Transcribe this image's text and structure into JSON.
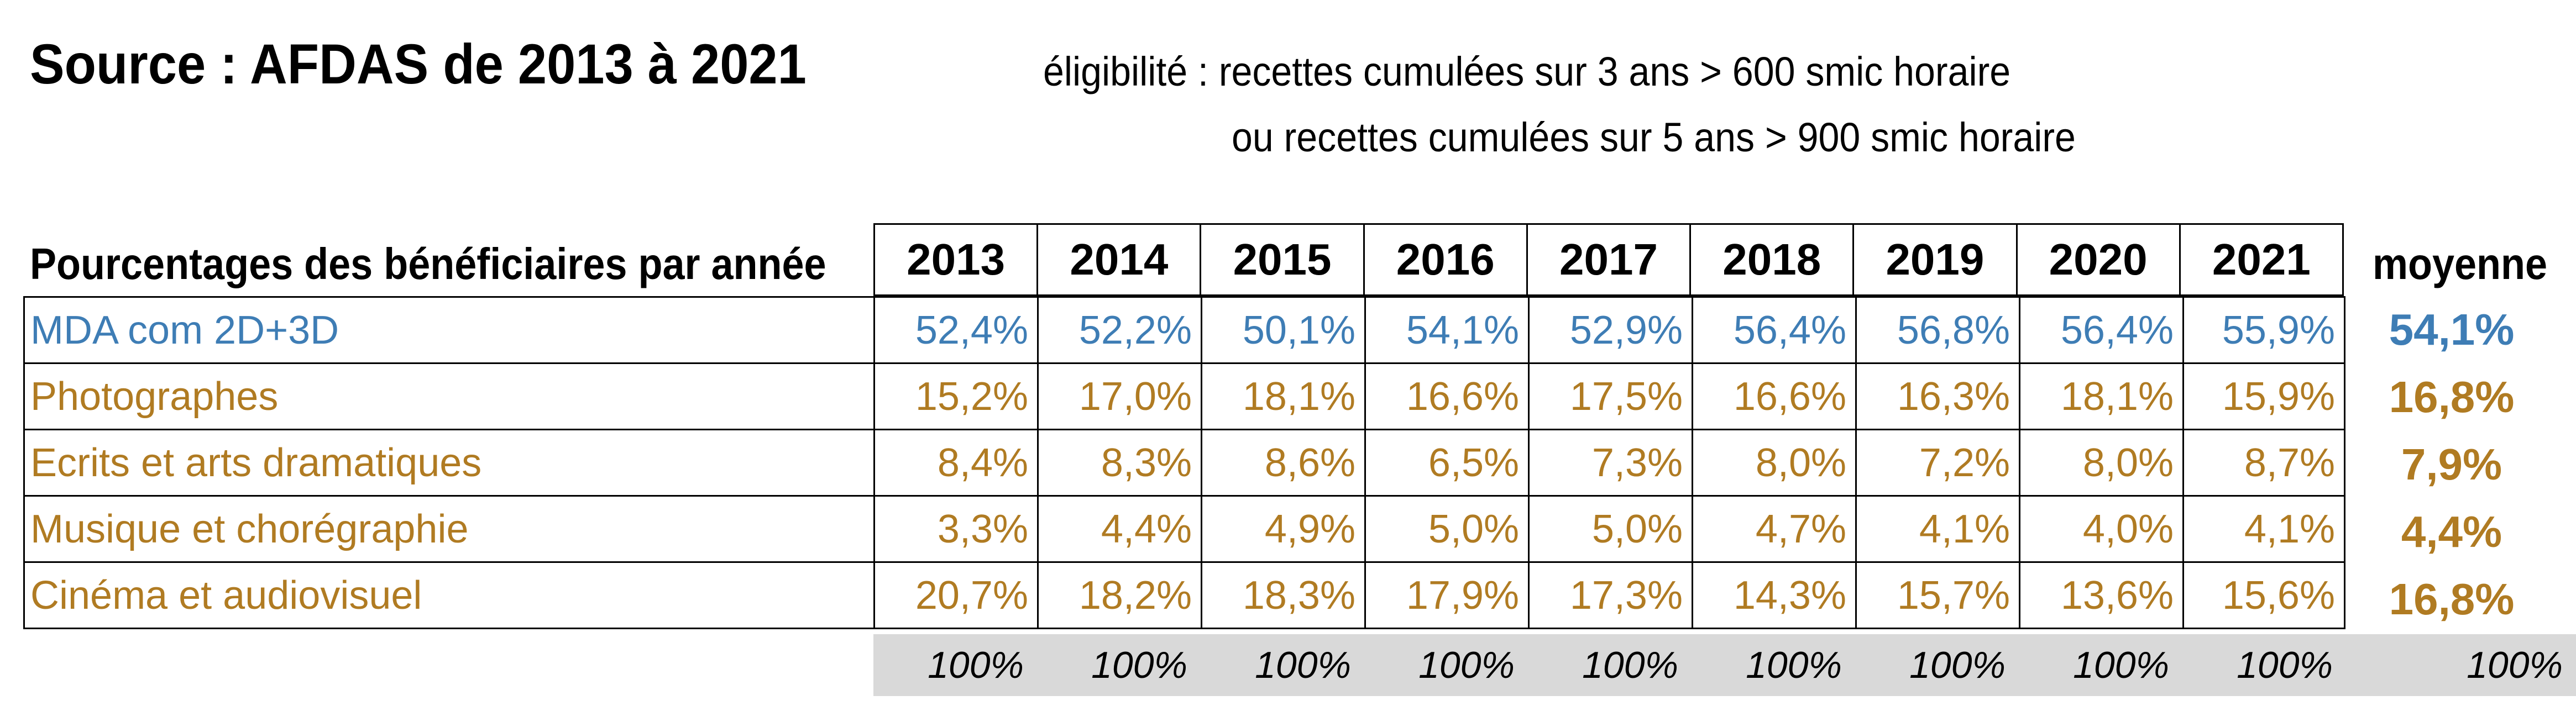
{
  "header": {
    "source_title": "Source : AFDAS de 2013 à 2021",
    "eligibility_line1": "éligibilité  : recettes cumulées sur 3 ans > 600 smic horaire",
    "eligibility_line2": "ou recettes cumulées sur 5 ans > 900 smic horaire"
  },
  "table": {
    "row_label_header": "Pourcentages des bénéficiaires par année",
    "years": [
      "2013",
      "2014",
      "2015",
      "2016",
      "2017",
      "2018",
      "2019",
      "2020",
      "2021"
    ],
    "average_header": "moyenne",
    "rows": [
      {
        "category": "MDA com 2D+3D",
        "values": [
          "52,4%",
          "52,2%",
          "50,1%",
          "54,1%",
          "52,9%",
          "56,4%",
          "56,8%",
          "56,4%",
          "55,9%"
        ],
        "average": "54,1%",
        "color": "#3e7db5"
      },
      {
        "category": "Photographes",
        "values": [
          "15,2%",
          "17,0%",
          "18,1%",
          "16,6%",
          "17,5%",
          "16,6%",
          "16,3%",
          "18,1%",
          "15,9%"
        ],
        "average": "16,8%",
        "color": "#b07b22"
      },
      {
        "category": "Ecrits et arts dramatiques",
        "values": [
          "8,4%",
          "8,3%",
          "8,6%",
          "6,5%",
          "7,3%",
          "8,0%",
          "7,2%",
          "8,0%",
          "8,7%"
        ],
        "average": "7,9%",
        "color": "#b07b22"
      },
      {
        "category": "Musique et chorégraphie",
        "values": [
          "3,3%",
          "4,4%",
          "4,9%",
          "5,0%",
          "5,0%",
          "4,7%",
          "4,1%",
          "4,0%",
          "4,1%"
        ],
        "average": "4,4%",
        "color": "#b07b22"
      },
      {
        "category": "Cinéma et audiovisuel",
        "values": [
          "20,7%",
          "18,2%",
          "18,3%",
          "17,9%",
          "17,3%",
          "14,3%",
          "15,7%",
          "13,6%",
          "15,6%"
        ],
        "average": "16,8%",
        "color": "#b07b22"
      }
    ],
    "totals": [
      "100%",
      "100%",
      "100%",
      "100%",
      "100%",
      "100%",
      "100%",
      "100%",
      "100%"
    ],
    "average_total": "100%",
    "total_row_color": "#d9d9d9"
  }
}
